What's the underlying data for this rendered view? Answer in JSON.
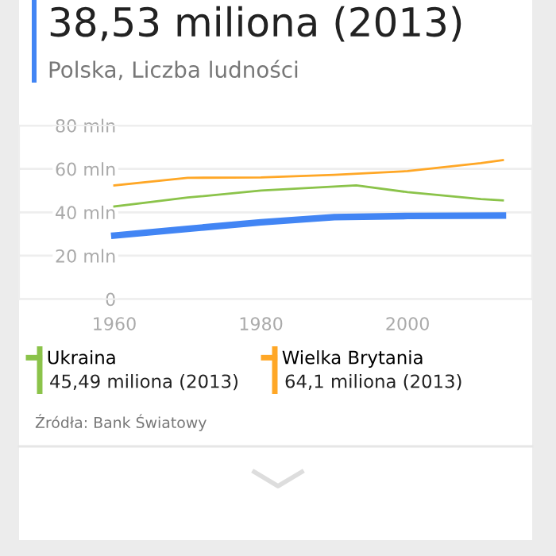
{
  "chart_data": {
    "type": "line",
    "title": "38,53 miliona (2013)",
    "subtitle": "Polska, Liczba ludności",
    "series": [
      {
        "color": "#4285f4",
        "x": [
          1960,
          1970,
          1980,
          1990,
          2000,
          2013
        ],
        "values": [
          29.3,
          32.4,
          35.4,
          37.8,
          38.3,
          38.5
        ]
      },
      {
        "name": "Ukraina",
        "color": "#8bc34a",
        "x": [
          1960,
          1970,
          1980,
          1993,
          2000,
          2010,
          2013
        ],
        "values": [
          42.7,
          46.8,
          50.0,
          52.4,
          49.3,
          46.1,
          45.5
        ]
      },
      {
        "name": "Wielka Brytania",
        "color": "#ffa726",
        "x": [
          1960,
          1970,
          1980,
          1990,
          2000,
          2010,
          2013
        ],
        "values": [
          52.4,
          55.9,
          56.1,
          57.3,
          59.0,
          62.7,
          64.1
        ]
      }
    ],
    "xlim": [
      1947,
      2017
    ],
    "xticks": [
      1960,
      1980,
      2000
    ],
    "ylim": [
      0,
      80
    ],
    "yticks": [
      {
        "value": 0,
        "label": "0"
      },
      {
        "value": 20,
        "label": "20 mln"
      },
      {
        "value": 40,
        "label": "40 mln"
      },
      {
        "value": 60,
        "label": "60 mln"
      },
      {
        "value": 80,
        "label": "80 mln"
      }
    ],
    "grid": "y",
    "legend": "bottom",
    "annotations": [
      "45,49 miliona (2013)",
      "64,1 miliona (2013)",
      "Źródła: Bank Światowy"
    ]
  }
}
